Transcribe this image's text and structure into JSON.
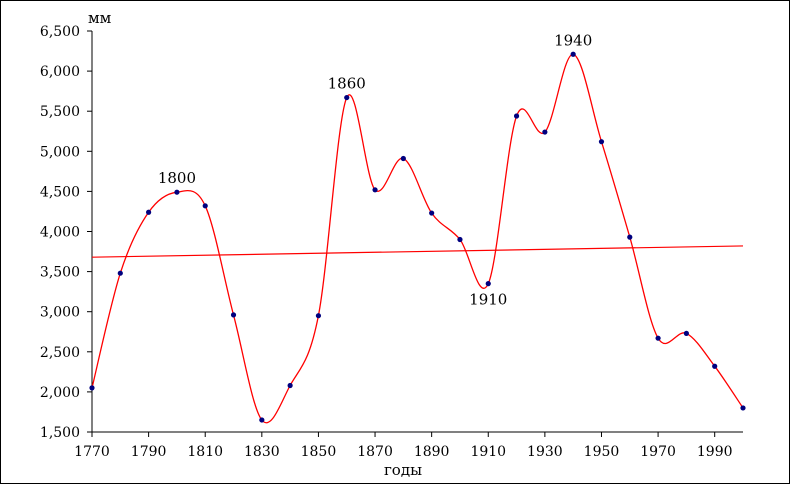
{
  "chart_data": {
    "type": "line",
    "title": "",
    "xlabel": "годы",
    "ylabel": "мм",
    "xlim": [
      1770,
      2000
    ],
    "ylim": [
      1500,
      6500
    ],
    "x_ticks": [
      1770,
      1790,
      1810,
      1830,
      1850,
      1870,
      1890,
      1910,
      1930,
      1950,
      1970,
      1990
    ],
    "y_ticks": [
      {
        "value": 1500,
        "label": "1,500"
      },
      {
        "value": 2000,
        "label": "2,000"
      },
      {
        "value": 2500,
        "label": "2,500"
      },
      {
        "value": 3000,
        "label": "3,000"
      },
      {
        "value": 3500,
        "label": "3,500"
      },
      {
        "value": 4000,
        "label": "4,000"
      },
      {
        "value": 4500,
        "label": "4,500"
      },
      {
        "value": 5000,
        "label": "5,000"
      },
      {
        "value": 5500,
        "label": "5,500"
      },
      {
        "value": 6000,
        "label": "6,000"
      },
      {
        "value": 6500,
        "label": "6,500"
      }
    ],
    "grid": false,
    "legend": "none",
    "series": [
      {
        "x": [
          1770,
          1780,
          1790,
          1800,
          1810,
          1820,
          1830,
          1840,
          1850,
          1860,
          1870,
          1880,
          1890,
          1900,
          1910,
          1920,
          1930,
          1940,
          1950,
          1960,
          1970,
          1980,
          1990,
          2000
        ],
        "values": [
          2050,
          3480,
          4240,
          4490,
          4320,
          2960,
          1650,
          2080,
          2950,
          5670,
          4520,
          4910,
          4230,
          3900,
          3350,
          5440,
          5240,
          6210,
          5120,
          3930,
          2670,
          2730,
          2320,
          1800
        ],
        "line_color": "#ff0000",
        "marker_color": "#00007f"
      }
    ],
    "trend_line": {
      "x": [
        1770,
        2000
      ],
      "values": [
        3680,
        3820
      ],
      "color": "#ff0000"
    },
    "annotations": [
      {
        "x": 1800,
        "y": 4490,
        "text": "1800",
        "position": "above"
      },
      {
        "x": 1860,
        "y": 5670,
        "text": "1860",
        "position": "above"
      },
      {
        "x": 1910,
        "y": 3350,
        "text": "1910",
        "position": "below"
      },
      {
        "x": 1940,
        "y": 6210,
        "text": "1940",
        "position": "above"
      }
    ]
  }
}
